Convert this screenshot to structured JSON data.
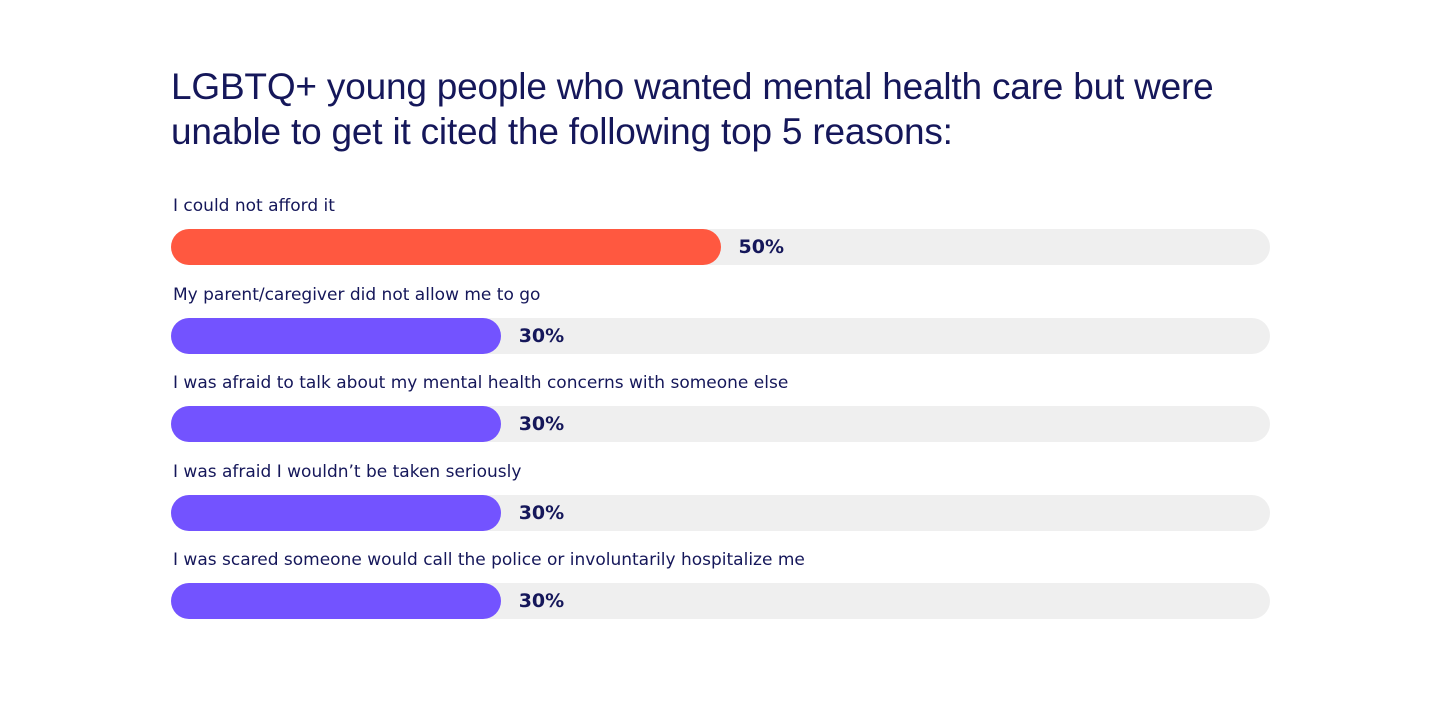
{
  "colors": {
    "title_text": "#15175a",
    "track": "#efefef",
    "highlight_bar": "#ff5840",
    "bar": "#7353ff"
  },
  "chart_data": {
    "type": "bar",
    "orientation": "horizontal",
    "title": "LGBTQ+ young people who wanted mental health care but were unable to get it cited the following top 5 reasons:",
    "xlim": [
      0,
      100
    ],
    "unit": "%",
    "grid": false,
    "legend": "none",
    "categories": [
      "I could not afford it",
      "My parent/caregiver did not allow me to go",
      "I was afraid to talk about my mental health concerns with someone else",
      "I was afraid I wouldn’t be taken seriously",
      "I was scared someone would call the police or involuntarily hospitalize me"
    ],
    "values": [
      50,
      30,
      30,
      30,
      30
    ],
    "value_labels": [
      "50%",
      "30%",
      "30%",
      "30%",
      "30%"
    ],
    "highlight_index": 0
  }
}
